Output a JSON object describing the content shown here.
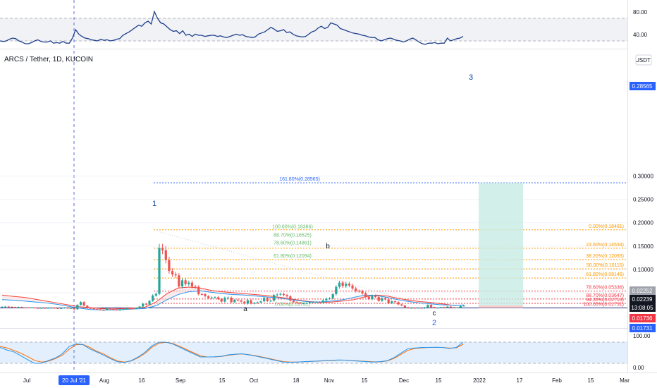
{
  "header": {
    "symbol_title": "ARCS / Tether, 1D, KUCOIN",
    "currency": "USDT"
  },
  "colors": {
    "up": "#26a69a",
    "down": "#ef5350",
    "fib_green": "#66bb6a",
    "fib_orange": "#ff9800",
    "fib_red": "#f23645",
    "target": "#2962ff",
    "wave": "#0d47a1",
    "rsi_line": "#1e3f8c",
    "ma_blue": "#2196f3",
    "ma_red": "#f44336",
    "box_green": "#c8ebe3"
  },
  "chart_data": [
    {
      "type": "line",
      "title": "RSI panel",
      "yticks": [
        40,
        80
      ],
      "ylim": [
        30,
        100
      ],
      "series": [
        {
          "values": [
            40,
            39,
            40,
            43,
            45,
            44,
            40,
            38,
            35,
            35,
            37,
            40,
            42,
            39,
            38,
            38,
            40,
            36,
            37,
            36,
            39,
            36,
            36,
            45,
            60,
            52,
            48,
            45,
            44,
            42,
            41,
            40,
            43,
            41,
            42,
            40,
            41,
            43,
            44,
            50,
            53,
            56,
            60,
            64,
            68,
            66,
            72,
            75,
            70,
            92,
            80,
            72,
            70,
            65,
            60,
            57,
            58,
            53,
            58,
            50,
            52,
            48,
            52,
            50,
            50,
            48,
            49,
            50,
            50,
            48,
            49,
            47,
            46,
            48,
            50,
            52,
            50,
            51,
            48,
            47,
            46,
            47,
            52,
            54,
            56,
            60,
            64,
            61,
            57,
            58,
            60,
            55,
            56,
            52,
            49,
            48,
            47,
            48,
            52,
            56,
            58,
            63,
            66,
            62,
            64,
            72,
            70,
            68,
            62,
            60,
            58,
            56,
            54,
            53,
            52,
            50,
            49,
            47,
            46,
            46,
            42,
            40,
            42,
            44,
            45,
            43,
            41,
            40,
            38,
            40,
            43,
            45,
            42,
            38,
            35,
            34,
            36,
            36,
            37,
            35,
            36,
            36,
            45,
            40,
            42,
            44,
            45,
            48
          ]
        }
      ]
    },
    {
      "type": "bar",
      "title": "Price (candlesticks)",
      "x_start": "2021-06-20",
      "xticks": [
        "Jul",
        "20 Jul '21",
        "Aug",
        "16",
        "Sep",
        "15",
        "Oct",
        "18",
        "Nov",
        "15",
        "Dec",
        "15",
        "2022",
        "17",
        "Feb",
        "15",
        "Mar"
      ],
      "yticks": [
        "0.05000",
        "0.10000",
        "0.15000",
        "0.20000",
        "0.25000",
        "0.30000"
      ],
      "ylim": [
        0.002,
        0.31
      ],
      "series": [
        {
          "name": "ARCSUSDT",
          "closes": [
            0.0198,
            0.0202,
            0.0196,
            0.019,
            0.0186,
            0.0191,
            0.0183,
            0.0182,
            0.0178,
            0.0181,
            0.0171,
            0.017,
            0.0172,
            0.0167,
            0.0174,
            0.0176,
            0.0168,
            0.016,
            0.0168,
            0.018,
            0.0162,
            0.0172,
            0.0144,
            0.0238,
            0.0298,
            0.0222,
            0.017,
            0.0164,
            0.0147,
            0.0142,
            0.0128,
            0.0124,
            0.0158,
            0.0145,
            0.0134,
            0.0124,
            0.0132,
            0.0148,
            0.016,
            0.0159,
            0.0156,
            0.0172,
            0.0203,
            0.0266,
            0.0244,
            0.0323,
            0.0439,
            0.0474,
            0.146,
            0.141,
            0.12,
            0.0965,
            0.0893,
            0.0872,
            0.0634,
            0.0766,
            0.0682,
            0.0717,
            0.0631,
            0.0624,
            0.0468,
            0.0467,
            0.0423,
            0.0384,
            0.0396,
            0.0402,
            0.0365,
            0.0309,
            0.0394,
            0.0395,
            0.0297,
            0.0346,
            0.0332,
            0.0308,
            0.0263,
            0.0338,
            0.0264,
            0.0281,
            0.0292,
            0.0315,
            0.0389,
            0.0321,
            0.0328,
            0.045,
            0.046,
            0.0473,
            0.0449,
            0.0422,
            0.033,
            0.0297,
            0.0282,
            0.0267,
            0.0272,
            0.0276,
            0.0296,
            0.0298,
            0.0299,
            0.0288,
            0.0336,
            0.0372,
            0.0379,
            0.0468,
            0.0625,
            0.0715,
            0.0642,
            0.0692,
            0.0654,
            0.0591,
            0.0536,
            0.0534,
            0.0486,
            0.0411,
            0.0361,
            0.0436,
            0.0406,
            0.0324,
            0.0383,
            0.0354,
            0.0271,
            0.0316,
            0.0297,
            0.0248,
            0.0224,
            0.0186,
            0.0165,
            0.0175,
            0.0172,
            0.0175,
            0.0163,
            0.0185,
            0.0238,
            0.0189,
            0.0172,
            0.0176,
            0.0188,
            0.0176,
            0.0201,
            0.0185,
            0.0182,
            0.0183,
            0.0213,
            0.0224
          ]
        },
        {
          "name": "EMA",
          "values": [
            0.045,
            0.042,
            0.04,
            0.036,
            0.032,
            0.028,
            0.024,
            0.02,
            0.018,
            0.016,
            0.015,
            0.016,
            0.017,
            0.019,
            0.03,
            0.048,
            0.06,
            0.062,
            0.06,
            0.055,
            0.052,
            0.05,
            0.048,
            0.046,
            0.044,
            0.041,
            0.038,
            0.034,
            0.031,
            0.029,
            0.03,
            0.032,
            0.035,
            0.041,
            0.045,
            0.043,
            0.038,
            0.034,
            0.031,
            0.029,
            0.026,
            0.023,
            0.0235
          ]
        },
        {
          "name": "SMA",
          "values": [
            0.035,
            0.034,
            0.032,
            0.03,
            0.028,
            0.025,
            0.021,
            0.017,
            0.014,
            0.013,
            0.013,
            0.014,
            0.015,
            0.016,
            0.022,
            0.035,
            0.046,
            0.052,
            0.054,
            0.051,
            0.048,
            0.046,
            0.045,
            0.043,
            0.041,
            0.039,
            0.036,
            0.033,
            0.03,
            0.03,
            0.032,
            0.035,
            0.04,
            0.045,
            0.044,
            0.04,
            0.035,
            0.031,
            0.028,
            0.026,
            0.024,
            0.023,
            0.0235
          ]
        }
      ]
    },
    {
      "type": "line",
      "title": "Stochastic RSI panel",
      "yticks": [
        0,
        100
      ],
      "ylim": [
        -10,
        120
      ],
      "series": [
        {
          "values": [
            75,
            63,
            54,
            36,
            17,
            0,
            0,
            13,
            25,
            45,
            79,
            92,
            88,
            68,
            53,
            38,
            22,
            7,
            4,
            13,
            30,
            53,
            83,
            100,
            100,
            91,
            76,
            60,
            45,
            30,
            30,
            31,
            33,
            40,
            43,
            45,
            40,
            34,
            27,
            20,
            13,
            6,
            5,
            6,
            8,
            9,
            11,
            13,
            14,
            16,
            15,
            12,
            10,
            8,
            6,
            8,
            12,
            27,
            48,
            69,
            72,
            75,
            75,
            76,
            75,
            70,
            75,
            100
          ]
        },
        {
          "values": [
            80,
            73,
            61,
            48,
            32,
            14,
            6,
            10,
            22,
            38,
            66,
            88,
            89,
            75,
            57,
            44,
            26,
            11,
            6,
            11,
            27,
            47,
            76,
            95,
            99,
            94,
            80,
            65,
            50,
            35,
            30,
            30,
            32,
            38,
            42,
            44,
            41,
            36,
            29,
            22,
            15,
            8,
            6,
            6,
            7,
            9,
            10,
            12,
            13,
            15,
            15,
            13,
            11,
            9,
            7,
            7,
            11,
            23,
            42,
            61,
            70,
            73,
            75,
            75,
            75,
            72,
            73,
            90
          ]
        }
      ]
    }
  ],
  "fib_left": [
    {
      "text": "161.80%(0.28565)",
      "value": 0.28565
    },
    {
      "text": "100.00%(0.18386)",
      "value": 0.18386
    },
    {
      "text": "88.70%(0.16525)",
      "value": 0.16525
    },
    {
      "text": "78.60%(0.14861)",
      "value": 0.14861
    },
    {
      "text": "61.80%(0.12094)",
      "value": 0.12094
    },
    {
      "text": "0.00%(0.01731)",
      "value": 0.01731
    }
  ],
  "fib_right": [
    {
      "text": "0.00%(0.18481)",
      "value": 0.18481
    },
    {
      "text": "23.60%(0.14534)",
      "value": 0.14534
    },
    {
      "text": "38.20%(0.12093)",
      "value": 0.12093
    },
    {
      "text": "50.00%(0.10115)",
      "value": 0.10115
    },
    {
      "text": "61.80%(0.08146)",
      "value": 0.08146
    },
    {
      "text": "78.60%(0.05336)",
      "value": 0.05336
    },
    {
      "text": "88.70%(0.03647)",
      "value": 0.03647
    },
    {
      "text": "94.30%(0.02713)",
      "value": 0.02713
    },
    {
      "text": "100.00%(0.01731)",
      "value": 0.01731
    }
  ],
  "wave_labels": [
    "1",
    "a",
    "b",
    "c",
    "2",
    "3"
  ],
  "price_tags": [
    {
      "text": "0.28565",
      "value": 0.28565
    },
    {
      "text": "0.02252",
      "value": 0.02252
    },
    {
      "text": "0.02239",
      "value": 0.02239
    },
    {
      "text": "13:08:05",
      "value": 0.0182
    },
    {
      "text": "0.01736",
      "value": 0.01736
    },
    {
      "text": "0.01731",
      "value": 0.01731
    }
  ],
  "stoch_ticks": [
    "100.00",
    "0.00"
  ],
  "rsi_ticks": [
    "80.00",
    "40.00"
  ]
}
